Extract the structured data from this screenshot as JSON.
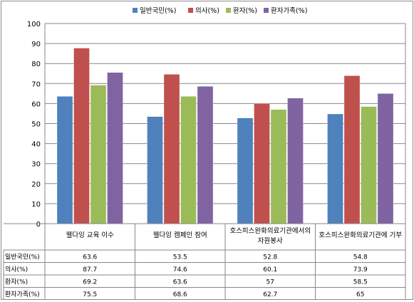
{
  "chart_data": {
    "type": "bar",
    "categories": [
      "웰다잉 교육 이수",
      "웰다잉 캠페인 참여",
      "호스피스완화의료기관에서의 자원봉사",
      "호스피스완화의료기관에 기부"
    ],
    "category_lines": [
      [
        "웰다잉 교육 이수"
      ],
      [
        "웰다잉 캠페인 참여"
      ],
      [
        "호스피스완화의료기관에서의",
        "자원봉사"
      ],
      [
        "호스피스완화의료기관에  기부"
      ]
    ],
    "series": [
      {
        "name": "일반국민(%)",
        "color": "#4f81bd",
        "values": [
          63.6,
          53.5,
          52.8,
          54.8
        ],
        "labels": [
          "63.6",
          "53.5",
          "52.8",
          "54.8"
        ]
      },
      {
        "name": "의사(%)",
        "color": "#c0504d",
        "values": [
          87.7,
          74.6,
          60.1,
          73.9
        ],
        "labels": [
          "87.7",
          "74.6",
          "60.1",
          "73.9"
        ]
      },
      {
        "name": "환자(%)",
        "color": "#9bbb59",
        "values": [
          69.2,
          63.6,
          57,
          58.5
        ],
        "labels": [
          "69.2",
          "63.6",
          "57",
          "58.5"
        ]
      },
      {
        "name": "환자가족(%)",
        "color": "#8064a2",
        "values": [
          75.5,
          68.6,
          62.7,
          65
        ],
        "labels": [
          "75.5",
          "68.6",
          "62.7",
          "65"
        ]
      }
    ],
    "ylim": [
      0,
      100
    ],
    "yticks": [
      "0",
      "10",
      "20",
      "30",
      "40",
      "50",
      "60",
      "70",
      "80",
      "90",
      "100"
    ],
    "grid": true,
    "legend_position": "top",
    "data_table": true
  }
}
